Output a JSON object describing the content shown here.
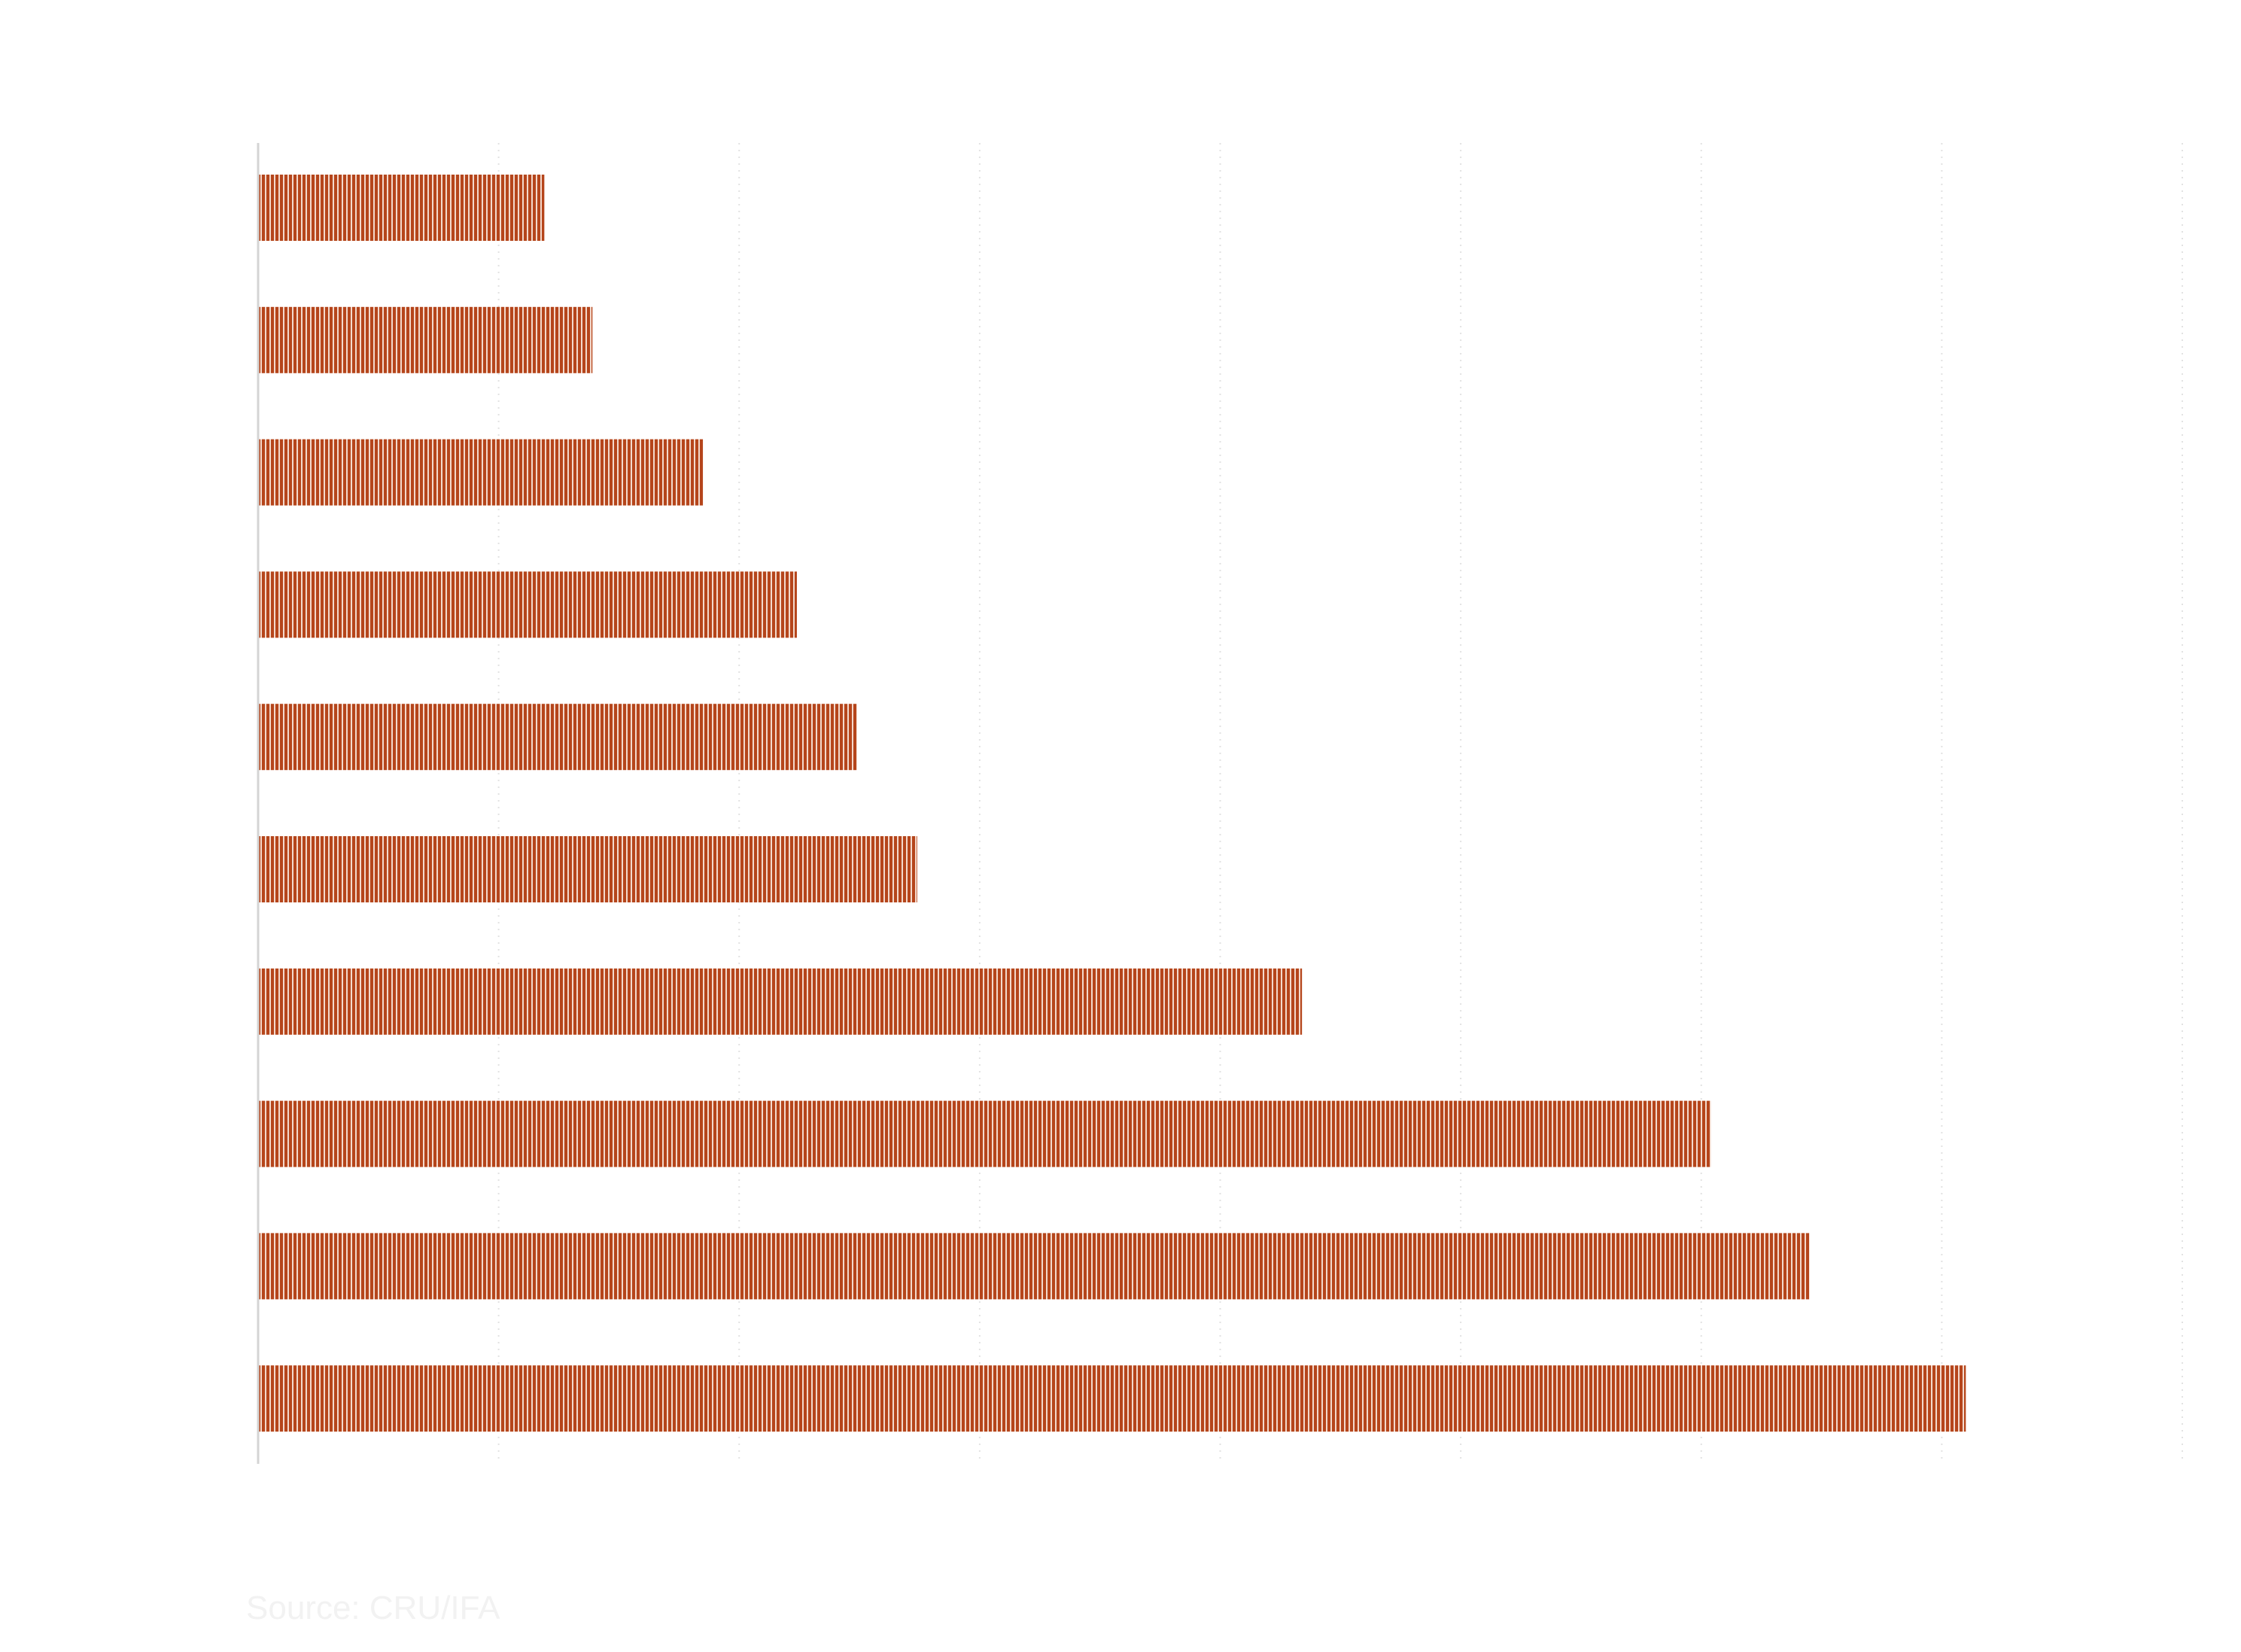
{
  "source": "Source: CRU/IFA",
  "colors": {
    "bar": "#b5451b",
    "bar_gap": "#f3d9cc",
    "grid": "#e2e2e2",
    "axis": "#d4d4d4",
    "source_text": "#f2f2f2"
  },
  "chart_data": {
    "type": "bar",
    "orientation": "horizontal",
    "categories": [
      "",
      "",
      "",
      "",
      "",
      "",
      "",
      "",
      "",
      ""
    ],
    "values": [
      1.19,
      1.39,
      1.85,
      2.24,
      2.49,
      2.74,
      4.34,
      6.04,
      6.45,
      7.1
    ],
    "xlim": [
      0,
      8
    ],
    "grid": true,
    "title": "",
    "xlabel": "",
    "ylabel": ""
  }
}
